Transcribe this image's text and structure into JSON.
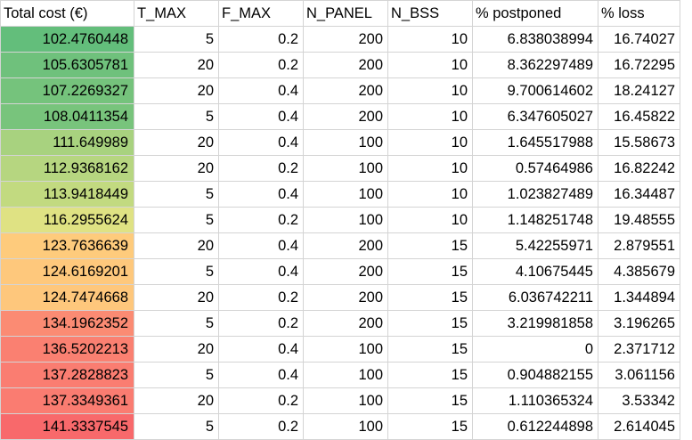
{
  "columns": [
    "Total cost (€)",
    "T_MAX",
    "F_MAX",
    "N_PANEL",
    "N_BSS",
    "% postponed",
    "% loss"
  ],
  "rows": [
    {
      "cost": "102.4760448",
      "t_max": "5",
      "f_max": "0.2",
      "n_panel": "200",
      "n_bss": "10",
      "postponed": "6.838038994",
      "loss": "16.74027",
      "color": "#63be7b"
    },
    {
      "cost": "105.6305781",
      "t_max": "20",
      "f_max": "0.2",
      "n_panel": "200",
      "n_bss": "10",
      "postponed": "8.362297489",
      "loss": "16.72295",
      "color": "#6fc17c"
    },
    {
      "cost": "107.2269327",
      "t_max": "20",
      "f_max": "0.4",
      "n_panel": "200",
      "n_bss": "10",
      "postponed": "9.700614602",
      "loss": "18.24127",
      "color": "#75c37c"
    },
    {
      "cost": "108.0411354",
      "t_max": "5",
      "f_max": "0.4",
      "n_panel": "200",
      "n_bss": "10",
      "postponed": "6.347605027",
      "loss": "16.45822",
      "color": "#78c47c"
    },
    {
      "cost": "111.649989",
      "t_max": "20",
      "f_max": "0.4",
      "n_panel": "100",
      "n_bss": "10",
      "postponed": "1.645517988",
      "loss": "15.58673",
      "color": "#a8d27f"
    },
    {
      "cost": "112.9368162",
      "t_max": "20",
      "f_max": "0.2",
      "n_panel": "100",
      "n_bss": "10",
      "postponed": "0.57464986",
      "loss": "16.82242",
      "color": "#b6d680"
    },
    {
      "cost": "113.9418449",
      "t_max": "5",
      "f_max": "0.4",
      "n_panel": "100",
      "n_bss": "10",
      "postponed": "1.023827489",
      "loss": "16.34487",
      "color": "#c2da80"
    },
    {
      "cost": "116.2955624",
      "t_max": "5",
      "f_max": "0.2",
      "n_panel": "100",
      "n_bss": "10",
      "postponed": "1.148251748",
      "loss": "19.48555",
      "color": "#dfe283"
    },
    {
      "cost": "123.7636639",
      "t_max": "20",
      "f_max": "0.4",
      "n_panel": "200",
      "n_bss": "15",
      "postponed": "5.42255971",
      "loss": "2.879551",
      "color": "#fecb7c"
    },
    {
      "cost": "124.6169201",
      "t_max": "5",
      "f_max": "0.4",
      "n_panel": "200",
      "n_bss": "15",
      "postponed": "4.10675445",
      "loss": "4.385679",
      "color": "#fec87c"
    },
    {
      "cost": "124.7474668",
      "t_max": "20",
      "f_max": "0.2",
      "n_panel": "200",
      "n_bss": "15",
      "postponed": "6.036742211",
      "loss": "1.344894",
      "color": "#fec77c"
    },
    {
      "cost": "134.1962352",
      "t_max": "5",
      "f_max": "0.2",
      "n_panel": "200",
      "n_bss": "15",
      "postponed": "3.219981858",
      "loss": "3.196265",
      "color": "#fb8b73"
    },
    {
      "cost": "136.5202213",
      "t_max": "20",
      "f_max": "0.4",
      "n_panel": "100",
      "n_bss": "15",
      "postponed": "0",
      "loss": "2.371712",
      "color": "#fa8071"
    },
    {
      "cost": "137.2828823",
      "t_max": "5",
      "f_max": "0.4",
      "n_panel": "100",
      "n_bss": "15",
      "postponed": "0.904882155",
      "loss": "3.061156",
      "color": "#fa7d71"
    },
    {
      "cost": "137.3349361",
      "t_max": "20",
      "f_max": "0.2",
      "n_panel": "100",
      "n_bss": "15",
      "postponed": "1.110365324",
      "loss": "3.53342",
      "color": "#fa7c71"
    },
    {
      "cost": "141.3337545",
      "t_max": "5",
      "f_max": "0.2",
      "n_panel": "100",
      "n_bss": "15",
      "postponed": "0.612244898",
      "loss": "2.614045",
      "color": "#f8696b"
    }
  ]
}
